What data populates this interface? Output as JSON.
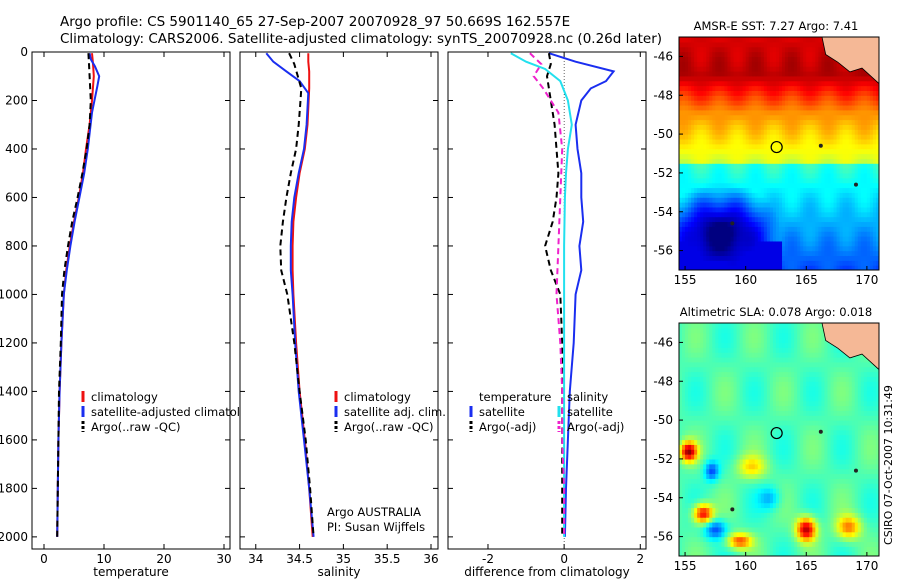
{
  "figure": {
    "title_line1": "Argo profile: CS 5901140_65 27-Sep-2007 20070928_97 50.669S 162.557E",
    "title_line2": "Climatology: CARS2006. Satellite-adjusted climatology: synTS_20070928.nc (0.26d later)",
    "side_note": "CSIRO 07-Oct-2007 10:31:49",
    "credit_line1": "Argo AUSTRALIA",
    "credit_line2": "PI: Susan Wijffels"
  },
  "colors": {
    "climatology": "#ee1111",
    "satellite": "#1a2ef0",
    "argo": "#000000",
    "satellite_salinity": "#22e0ee",
    "argo_salinity": "#ee22cc",
    "land": "#f5b896"
  },
  "chart_data": [
    {
      "id": "temperature",
      "type": "line",
      "xlabel": "temperature",
      "ylabel": "",
      "xlim": [
        -2,
        31
      ],
      "ylim": [
        2050,
        0
      ],
      "xticks": [
        0,
        10,
        20,
        30
      ],
      "yticks": [
        0,
        200,
        400,
        600,
        800,
        1000,
        1200,
        1400,
        1600,
        1800,
        2000
      ],
      "legend": {
        "position": "bottom-center",
        "entries": [
          "climatology",
          "satellite-adjusted climatology",
          "Argo(..raw -QC)"
        ]
      },
      "series": [
        {
          "name": "climatology",
          "color": "#ee1111",
          "dash": "",
          "x": [
            8.0,
            8.1,
            8.2,
            8.3,
            8.0,
            7.6,
            7.0,
            6.5,
            5.8,
            5.0,
            4.3,
            3.7,
            3.3,
            2.9,
            2.6,
            2.4,
            2.3,
            2.2
          ],
          "y": [
            5,
            30,
            60,
            100,
            200,
            300,
            400,
            500,
            600,
            700,
            800,
            900,
            1000,
            1200,
            1400,
            1600,
            1800,
            2000
          ]
        },
        {
          "name": "satellite-adjusted climatology",
          "color": "#1a2ef0",
          "dash": "",
          "x": [
            7.6,
            7.8,
            8.5,
            9.2,
            8.9,
            8.0,
            7.3,
            6.7,
            5.9,
            5.1,
            4.4,
            3.8,
            3.3,
            2.9,
            2.6,
            2.4,
            2.3,
            2.2
          ],
          "y": [
            5,
            30,
            60,
            100,
            140,
            250,
            400,
            500,
            600,
            700,
            800,
            900,
            1000,
            1200,
            1400,
            1600,
            1800,
            2000
          ]
        },
        {
          "name": "Argo(..raw -QC)",
          "color": "#000000",
          "dash": "6,4",
          "x": [
            7.4,
            7.5,
            7.6,
            7.7,
            7.8,
            7.6,
            7.1,
            6.4,
            5.6,
            4.7,
            4.0,
            3.4,
            3.0,
            2.8,
            2.5,
            2.4,
            2.3,
            2.2
          ],
          "y": [
            5,
            50,
            100,
            150,
            200,
            300,
            400,
            500,
            600,
            700,
            800,
            900,
            1000,
            1200,
            1400,
            1600,
            1800,
            2000
          ]
        }
      ]
    },
    {
      "id": "salinity",
      "type": "line",
      "xlabel": "salinity",
      "ylabel": "",
      "xlim": [
        33.82,
        36.08
      ],
      "ylim": [
        2050,
        0
      ],
      "xticks": [
        34,
        34.5,
        35,
        35.5,
        36
      ],
      "legend": {
        "position": "bottom-right",
        "entries": [
          "climatology",
          "satellite adj. clim.",
          "Argo(..raw -QC)"
        ]
      },
      "series": [
        {
          "name": "climatology",
          "color": "#ee1111",
          "dash": "",
          "x": [
            34.6,
            34.6,
            34.61,
            34.61,
            34.59,
            34.56,
            34.5,
            34.46,
            34.43,
            34.42,
            34.42,
            34.43,
            34.46,
            34.5,
            34.56,
            34.61,
            34.65
          ],
          "y": [
            5,
            40,
            80,
            150,
            300,
            400,
            500,
            600,
            700,
            800,
            900,
            1000,
            1200,
            1400,
            1600,
            1800,
            2000
          ]
        },
        {
          "name": "satellite adj. clim.",
          "color": "#1a2ef0",
          "dash": "",
          "x": [
            34.12,
            34.2,
            34.35,
            34.5,
            34.6,
            34.58,
            34.55,
            34.49,
            34.44,
            34.41,
            34.4,
            34.4,
            34.42,
            34.45,
            34.49,
            34.55,
            34.61,
            34.66
          ],
          "y": [
            5,
            40,
            80,
            120,
            170,
            300,
            400,
            500,
            600,
            700,
            800,
            900,
            1000,
            1200,
            1400,
            1600,
            1800,
            2000
          ]
        },
        {
          "name": "Argo(..raw -QC)",
          "color": "#000000",
          "dash": "6,4",
          "x": [
            34.38,
            34.44,
            34.48,
            34.52,
            34.51,
            34.49,
            34.46,
            34.4,
            34.35,
            34.31,
            34.28,
            34.29,
            34.36,
            34.44,
            34.5,
            34.57,
            34.62,
            34.66
          ],
          "y": [
            5,
            50,
            100,
            150,
            200,
            300,
            400,
            500,
            600,
            700,
            800,
            900,
            1000,
            1200,
            1400,
            1600,
            1800,
            2000
          ]
        }
      ]
    },
    {
      "id": "difference",
      "type": "line",
      "xlabel": "difference from climatology",
      "ylabel": "",
      "xlim": [
        -3.05,
        2.15
      ],
      "ylim": [
        2050,
        0
      ],
      "xticks": [
        -2,
        0,
        2
      ],
      "legend": {
        "position": "bottom",
        "groups": [
          {
            "title": "temperature",
            "entries": [
              "satellite",
              "Argo(-adj)"
            ]
          },
          {
            "title": "salinity",
            "entries": [
              "satellite",
              "Argo(-adj)"
            ]
          }
        ]
      },
      "series": [
        {
          "name": "satellite",
          "group": "temperature",
          "color": "#1a2ef0",
          "dash": "",
          "x": [
            -0.4,
            0.3,
            1.3,
            1.1,
            0.7,
            0.45,
            0.3,
            0.35,
            0.45,
            0.45,
            0.5,
            0.4,
            0.45,
            0.3,
            0.25,
            0.15,
            0.1,
            0.05,
            0.02
          ],
          "y": [
            5,
            40,
            80,
            120,
            150,
            200,
            300,
            400,
            500,
            600,
            700,
            800,
            900,
            1000,
            1200,
            1400,
            1600,
            1800,
            2000
          ]
        },
        {
          "name": "Argo(-adj)",
          "group": "temperature",
          "color": "#000000",
          "dash": "6,4",
          "x": [
            -0.4,
            -0.35,
            -0.45,
            -0.35,
            -0.25,
            -0.2,
            -0.15,
            -0.2,
            -0.3,
            -0.5,
            -0.35,
            -0.1,
            -0.05,
            -0.05,
            -0.05,
            -0.05
          ],
          "y": [
            5,
            50,
            100,
            200,
            300,
            400,
            500,
            600,
            700,
            800,
            900,
            1000,
            1200,
            1400,
            1600,
            2000
          ]
        },
        {
          "name": "satellite",
          "group": "salinity",
          "color": "#22e0ee",
          "dash": "",
          "x": [
            -1.4,
            -1.0,
            -0.5,
            -0.1,
            0.1,
            0.2,
            0.1,
            0.05,
            0.02,
            0.0,
            0.0,
            0.0,
            0.0,
            0.0
          ],
          "y": [
            5,
            40,
            70,
            120,
            200,
            300,
            400,
            500,
            600,
            800,
            1000,
            1400,
            1800,
            2000
          ]
        },
        {
          "name": "Argo(-adj)",
          "group": "salinity",
          "color": "#ee22cc",
          "dash": "6,4",
          "x": [
            -0.9,
            -0.6,
            -0.8,
            -0.55,
            -0.15,
            -0.05,
            -0.1,
            -0.15,
            -0.2,
            -0.1,
            -0.05,
            -0.05,
            0.0,
            0.0
          ],
          "y": [
            5,
            50,
            100,
            150,
            250,
            400,
            600,
            800,
            1000,
            1200,
            1400,
            1600,
            1800,
            2000
          ]
        }
      ]
    },
    {
      "id": "amsr-sst-map",
      "type": "heatmap",
      "title": "AMSR-E SST: 7.27 Argo: 7.41",
      "xlim": [
        154.5,
        171
      ],
      "ylim": [
        -57,
        -45
      ],
      "xticks": [
        155,
        160,
        165,
        170
      ],
      "yticks": [
        -46,
        -48,
        -50,
        -52,
        -54,
        -56
      ],
      "marker": {
        "lon": 162.557,
        "lat": -50.669
      }
    },
    {
      "id": "altimetric-sla-map",
      "type": "heatmap",
      "title": "Altimetric SLA: 0.078 Argo: 0.018",
      "xlim": [
        154.5,
        171
      ],
      "ylim": [
        -57,
        -45
      ],
      "xticks": [
        155,
        160,
        165,
        170
      ],
      "yticks": [
        -46,
        -48,
        -50,
        -52,
        -54,
        -56
      ],
      "marker": {
        "lon": 162.557,
        "lat": -50.669
      }
    }
  ]
}
